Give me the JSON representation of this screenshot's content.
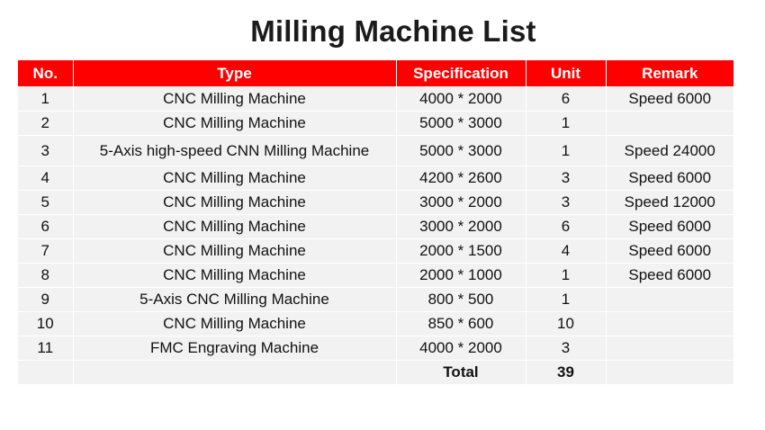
{
  "title": "Milling Machine List",
  "columns": [
    "No.",
    "Type",
    "Specification",
    "Unit",
    "Remark"
  ],
  "rows": [
    {
      "no": "1",
      "type": "CNC Milling Machine",
      "spec": "4000 * 2000",
      "unit": "6",
      "remark": "Speed 6000"
    },
    {
      "no": "2",
      "type": "CNC Milling Machine",
      "spec": "5000 * 3000",
      "unit": "1",
      "remark": ""
    },
    {
      "no": "3",
      "type": "5-Axis high-speed CNN Milling Machine",
      "spec": "5000 * 3000",
      "unit": "1",
      "remark": "Speed 24000"
    },
    {
      "no": "4",
      "type": "CNC Milling Machine",
      "spec": "4200 * 2600",
      "unit": "3",
      "remark": "Speed 6000"
    },
    {
      "no": "5",
      "type": "CNC Milling Machine",
      "spec": "3000 * 2000",
      "unit": "3",
      "remark": "Speed 12000"
    },
    {
      "no": "6",
      "type": "CNC Milling Machine",
      "spec": "3000 * 2000",
      "unit": "6",
      "remark": "Speed 6000"
    },
    {
      "no": "7",
      "type": "CNC Milling Machine",
      "spec": "2000 * 1500",
      "unit": "4",
      "remark": "Speed 6000"
    },
    {
      "no": "8",
      "type": "CNC Milling Machine",
      "spec": "2000 * 1000",
      "unit": "1",
      "remark": "Speed 6000"
    },
    {
      "no": "9",
      "type": "5-Axis CNC Milling Machine",
      "spec": "800 * 500",
      "unit": "1",
      "remark": ""
    },
    {
      "no": "10",
      "type": "CNC Milling Machine",
      "spec": "850 * 600",
      "unit": "10",
      "remark": ""
    },
    {
      "no": "11",
      "type": "FMC Engraving Machine",
      "spec": "4000 * 2000",
      "unit": "3",
      "remark": ""
    }
  ],
  "total": {
    "label": "Total",
    "unit": "39"
  },
  "colors": {
    "header_bg": "#ff0000",
    "header_text": "#ffffff",
    "cell_bg": "#f2f2f2"
  }
}
